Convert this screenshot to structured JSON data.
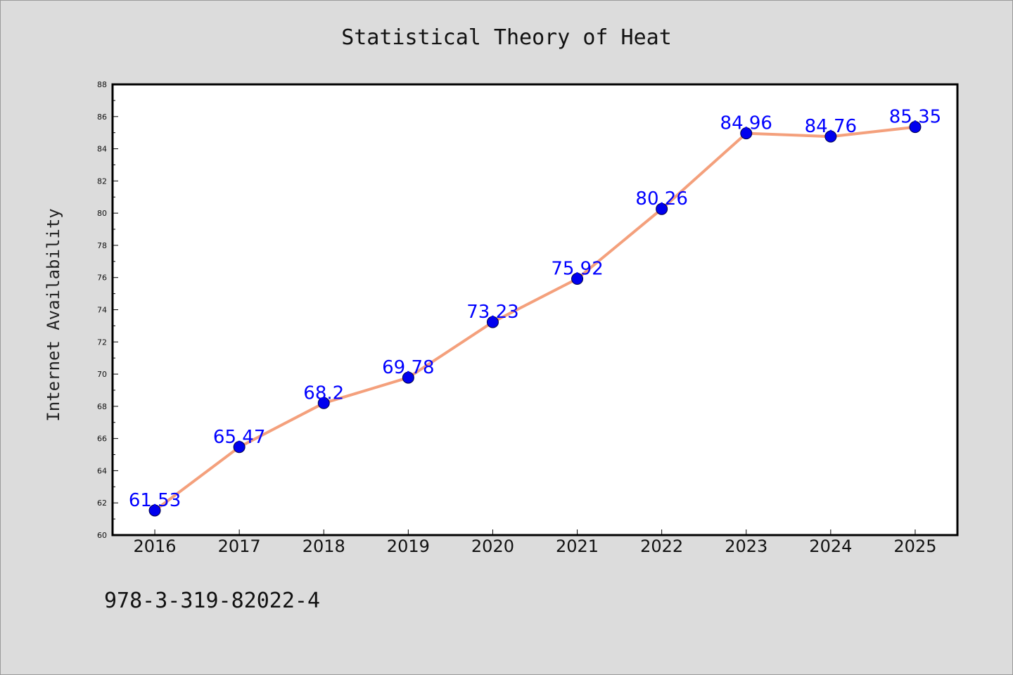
{
  "chart_data": {
    "type": "line",
    "title": "Statistical Theory of Heat",
    "xlabel": "",
    "ylabel": "Internet Availability",
    "categories": [
      "2016",
      "2017",
      "2018",
      "2019",
      "2020",
      "2021",
      "2022",
      "2023",
      "2024",
      "2025"
    ],
    "series": [
      {
        "values": [
          61.53,
          65.47,
          68.2,
          69.78,
          73.23,
          75.92,
          80.26,
          84.96,
          84.76,
          85.35
        ],
        "labels": [
          "61.53",
          "65.47",
          "68.2",
          "69.78",
          "73.23",
          "75.92",
          "80.26",
          "84.96",
          "84.76",
          "85.35"
        ]
      }
    ],
    "ylim": [
      60,
      88
    ],
    "yticks": [
      "60",
      "62",
      "64",
      "66",
      "68",
      "70",
      "72",
      "74",
      "76",
      "78",
      "80",
      "82",
      "84",
      "86",
      "88"
    ],
    "grid": false,
    "legend": "none"
  },
  "footer_text": "978-3-319-82022-4",
  "colors": {
    "background": "#dcdcdc",
    "plot_background": "#ffffff",
    "line": "#f4a07c",
    "marker": "#0000ee",
    "data_label": "#0000ff"
  }
}
